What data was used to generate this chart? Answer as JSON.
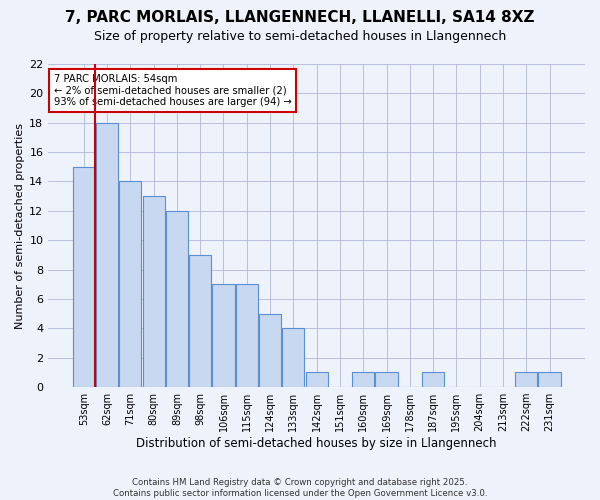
{
  "title": "7, PARC MORLAIS, LLANGENNECH, LLANELLI, SA14 8XZ",
  "subtitle": "Size of property relative to semi-detached houses in Llangennech",
  "xlabel": "Distribution of semi-detached houses by size in Llangennech",
  "ylabel": "Number of semi-detached properties",
  "categories": [
    "53sqm",
    "62sqm",
    "71sqm",
    "80sqm",
    "89sqm",
    "98sqm",
    "106sqm",
    "115sqm",
    "124sqm",
    "133sqm",
    "142sqm",
    "151sqm",
    "160sqm",
    "169sqm",
    "178sqm",
    "187sqm",
    "195sqm",
    "204sqm",
    "213sqm",
    "222sqm",
    "231sqm"
  ],
  "values": [
    15,
    18,
    14,
    13,
    12,
    9,
    7,
    7,
    5,
    4,
    1,
    0,
    1,
    1,
    0,
    1,
    0,
    0,
    0,
    1,
    1
  ],
  "bar_color": "#c8d8f0",
  "bar_edge_color": "#5b8fd4",
  "annotation_line1": "7 PARC MORLAIS: 54sqm",
  "annotation_line2": "← 2% of semi-detached houses are smaller (2)",
  "annotation_line3": "93% of semi-detached houses are larger (94) →",
  "annotation_box_color": "#ffffff",
  "annotation_box_edge": "#cc0000",
  "vline_color": "#cc0000",
  "vline_x": 0.5,
  "ylim": [
    0,
    22
  ],
  "yticks": [
    0,
    2,
    4,
    6,
    8,
    10,
    12,
    14,
    16,
    18,
    20,
    22
  ],
  "footer_line1": "Contains HM Land Registry data © Crown copyright and database right 2025.",
  "footer_line2": "Contains public sector information licensed under the Open Government Licence v3.0.",
  "bg_color": "#eef2fb",
  "grid_color": "#b0b8d8",
  "title_fontsize": 11,
  "subtitle_fontsize": 9
}
